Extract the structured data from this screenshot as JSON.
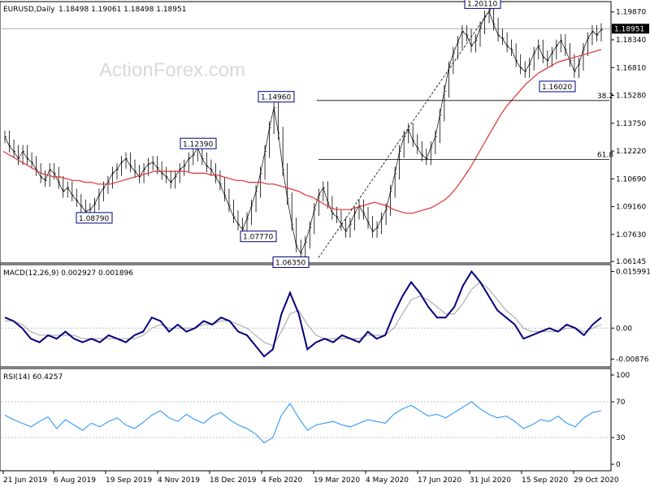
{
  "chart_data": [
    {
      "type": "candlestick",
      "header": {
        "symbol": "EURUSD,Daily",
        "ohlc": "1.18498 1.19061 1.18498 1.18951"
      },
      "watermark": "ActionForex.com",
      "y_ticks": [
        "1.19870",
        "1.18340",
        "1.16810",
        "1.15280",
        "1.13750",
        "1.12220",
        "1.10690",
        "1.09160",
        "1.07630",
        "1.06145"
      ],
      "y_tick_values": [
        1.1987,
        1.1834,
        1.1681,
        1.1528,
        1.1375,
        1.1222,
        1.1069,
        1.0916,
        1.0763,
        1.06145
      ],
      "ylim": [
        1.0615,
        1.2035
      ],
      "current_price": "1.18951",
      "current_price_value": 1.18951,
      "x_ticks": [
        "21 Jun 2019",
        "6 Aug 2019",
        "19 Sep 2019",
        "4 Nov 2019",
        "18 Dec 2019",
        "4 Feb 2020",
        "19 Mar 2020",
        "4 May 2020",
        "17 Jun 2020",
        "31 Jul 2020",
        "15 Sep 2020",
        "29 Oct 2020"
      ],
      "annotations": [
        {
          "label": "1.20110",
          "value": 1.2011,
          "box": "top-left"
        },
        {
          "label": "1.16020",
          "value": 1.1602,
          "box": "bottom-left"
        },
        {
          "label": "1.14960",
          "value": 1.1496,
          "box": "top-left"
        },
        {
          "label": "1.12390",
          "value": 1.1239,
          "box": "top-left"
        },
        {
          "label": "1.08790",
          "value": 1.0879,
          "box": "bottom-left"
        },
        {
          "label": "1.07770",
          "value": 1.0777,
          "box": "bottom-left"
        },
        {
          "label": "1.06350",
          "value": 1.0635,
          "box": "bottom-left"
        }
      ],
      "fibonacci": [
        {
          "label": "38.2",
          "value": 1.15
        },
        {
          "label": "61.8",
          "value": 1.1175
        }
      ],
      "price_path": [
        1.13,
        1.125,
        1.122,
        1.118,
        1.122,
        1.118,
        1.116,
        1.112,
        1.108,
        1.106,
        1.112,
        1.11,
        1.105,
        1.1,
        1.102,
        1.098,
        1.095,
        1.092,
        1.089,
        1.09,
        1.093,
        1.098,
        1.102,
        1.105,
        1.11,
        1.112,
        1.116,
        1.118,
        1.114,
        1.111,
        1.108,
        1.112,
        1.115,
        1.116,
        1.113,
        1.11,
        1.108,
        1.105,
        1.108,
        1.112,
        1.114,
        1.118,
        1.12,
        1.124,
        1.118,
        1.114,
        1.112,
        1.108,
        1.104,
        1.098,
        1.092,
        1.086,
        1.082,
        1.079,
        1.085,
        1.092,
        1.1,
        1.11,
        1.122,
        1.135,
        1.146,
        1.132,
        1.112,
        1.096,
        1.082,
        1.07,
        1.066,
        1.072,
        1.08,
        1.09,
        1.098,
        1.102,
        1.094,
        1.088,
        1.086,
        1.082,
        1.078,
        1.082,
        1.088,
        1.092,
        1.088,
        1.083,
        1.078,
        1.08,
        1.085,
        1.09,
        1.1,
        1.11,
        1.122,
        1.13,
        1.134,
        1.128,
        1.124,
        1.12,
        1.118,
        1.124,
        1.13,
        1.142,
        1.155,
        1.168,
        1.176,
        1.182,
        1.188,
        1.186,
        1.18,
        1.183,
        1.19,
        1.196,
        1.199,
        1.192,
        1.186,
        1.184,
        1.18,
        1.178,
        1.172,
        1.168,
        1.166,
        1.17,
        1.176,
        1.18,
        1.174,
        1.172,
        1.176,
        1.18,
        1.183,
        1.178,
        1.172,
        1.166,
        1.17,
        1.178,
        1.184,
        1.188,
        1.186,
        1.189
      ],
      "ma_path": [
        1.122,
        1.12,
        1.118,
        1.116,
        1.114,
        1.112,
        1.11,
        1.109,
        1.108,
        1.108,
        1.107,
        1.106,
        1.106,
        1.105,
        1.105,
        1.104,
        1.104,
        1.104,
        1.105,
        1.106,
        1.107,
        1.108,
        1.109,
        1.11,
        1.111,
        1.111,
        1.111,
        1.111,
        1.111,
        1.111,
        1.11,
        1.11,
        1.11,
        1.109,
        1.109,
        1.108,
        1.107,
        1.106,
        1.106,
        1.105,
        1.105,
        1.105,
        1.104,
        1.104,
        1.103,
        1.102,
        1.101,
        1.1,
        1.098,
        1.097,
        1.095,
        1.093,
        1.091,
        1.09,
        1.09,
        1.09,
        1.091,
        1.092,
        1.093,
        1.094,
        1.093,
        1.092,
        1.09,
        1.089,
        1.088,
        1.088,
        1.089,
        1.09,
        1.091,
        1.093,
        1.095,
        1.098,
        1.102,
        1.107,
        1.112,
        1.118,
        1.124,
        1.13,
        1.136,
        1.142,
        1.147,
        1.151,
        1.155,
        1.159,
        1.162,
        1.165,
        1.167,
        1.169,
        1.171,
        1.172,
        1.173,
        1.174,
        1.175,
        1.176,
        1.177,
        1.178
      ],
      "price_color": "#000000",
      "ma_color": "#e03030"
    },
    {
      "type": "line",
      "label": "MACD(12,26,9) 0.002927 0.001896",
      "y_ticks": [
        "0.015991",
        "0.00",
        "-0.00876"
      ],
      "y_tick_values": [
        0.015991,
        0.0,
        -0.00876
      ],
      "ylim": [
        -0.0105,
        0.0175
      ],
      "macd": [
        0.003,
        0.002,
        0.0,
        -0.003,
        -0.004,
        -0.002,
        -0.003,
        -0.001,
        -0.003,
        -0.004,
        -0.003,
        -0.004,
        -0.002,
        -0.003,
        -0.004,
        -0.002,
        -0.001,
        0.003,
        0.002,
        -0.001,
        0.001,
        -0.001,
        0.0,
        0.002,
        0.001,
        0.003,
        0.002,
        -0.001,
        -0.002,
        -0.005,
        -0.008,
        -0.006,
        0.004,
        0.01,
        0.004,
        -0.006,
        -0.004,
        -0.003,
        -0.004,
        -0.002,
        -0.003,
        -0.004,
        -0.001,
        -0.003,
        -0.002,
        0.004,
        0.009,
        0.013,
        0.01,
        0.006,
        0.003,
        0.003,
        0.006,
        0.012,
        0.016,
        0.013,
        0.009,
        0.005,
        0.003,
        0.001,
        -0.003,
        -0.002,
        -0.001,
        0.0,
        -0.001,
        0.001,
        0.0,
        -0.002,
        0.001,
        0.003
      ],
      "signal": [
        0.002,
        0.002,
        0.001,
        -0.001,
        -0.002,
        -0.002,
        -0.002,
        -0.002,
        -0.002,
        -0.003,
        -0.003,
        -0.003,
        -0.003,
        -0.003,
        -0.003,
        -0.003,
        -0.002,
        0.0,
        0.001,
        0.0,
        0.0,
        0.0,
        0.0,
        0.001,
        0.001,
        0.002,
        0.002,
        0.001,
        0.0,
        -0.002,
        -0.004,
        -0.005,
        -0.001,
        0.004,
        0.005,
        0.001,
        -0.002,
        -0.003,
        -0.003,
        -0.003,
        -0.003,
        -0.003,
        -0.002,
        -0.002,
        -0.002,
        0.0,
        0.004,
        0.008,
        0.009,
        0.008,
        0.006,
        0.004,
        0.004,
        0.007,
        0.011,
        0.013,
        0.011,
        0.008,
        0.005,
        0.003,
        0.0,
        -0.001,
        -0.001,
        -0.001,
        -0.001,
        0.0,
        0.0,
        -0.001,
        0.0,
        0.001
      ],
      "macd_color": "#000080",
      "signal_color": "#a0a0a0"
    },
    {
      "type": "line",
      "label": "RSI(14) 60.4257",
      "y_ticks": [
        "100",
        "70",
        "30",
        "0"
      ],
      "y_tick_values": [
        100,
        70,
        30,
        0
      ],
      "ylim": [
        0,
        100
      ],
      "levels": [
        70,
        30
      ],
      "rsi": [
        55,
        50,
        46,
        42,
        48,
        53,
        40,
        50,
        44,
        38,
        46,
        42,
        48,
        52,
        44,
        40,
        47,
        55,
        60,
        52,
        48,
        56,
        50,
        46,
        54,
        58,
        50,
        44,
        40,
        34,
        24,
        30,
        55,
        68,
        52,
        38,
        44,
        46,
        48,
        44,
        42,
        46,
        50,
        48,
        46,
        56,
        62,
        66,
        60,
        54,
        56,
        52,
        58,
        64,
        70,
        62,
        56,
        52,
        54,
        48,
        40,
        44,
        50,
        48,
        54,
        46,
        42,
        52,
        58,
        60
      ],
      "rsi_color": "#1e90ff"
    }
  ]
}
